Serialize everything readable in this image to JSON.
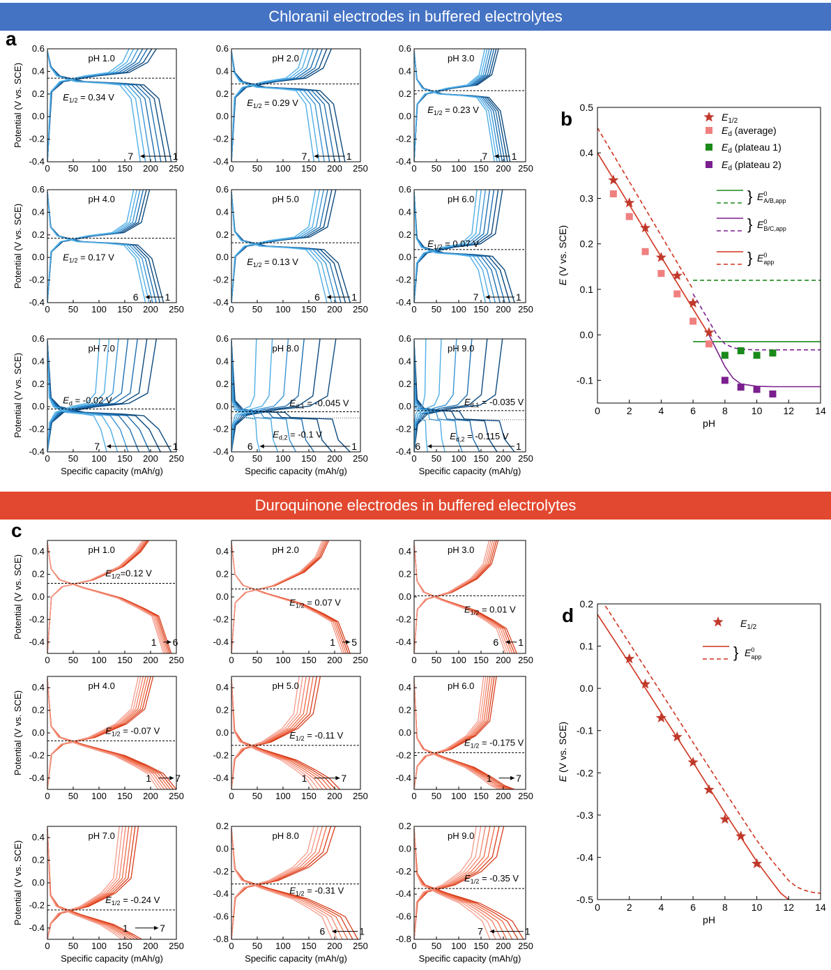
{
  "headers": {
    "chloranil": "Chloranil electrodes in buffered electrolytes",
    "duroquinone": "Duroquinone electrodes in buffered electrolytes"
  },
  "panel_labels": {
    "a": "a",
    "b": "b",
    "c": "c",
    "d": "d"
  },
  "colors": {
    "chloranil_banner": "#4573c4",
    "duroquinone_banner": "#e2482f",
    "chloranil_curves": [
      "#0d4a7f",
      "#1f6fb0",
      "#3b95d6",
      "#4faee6"
    ],
    "duroquinone_curves": [
      "#d93d1b",
      "#ee6a45",
      "#f4826a",
      "#f59a88"
    ],
    "e_half_star": "#c0392b",
    "ed_average": "#f08080",
    "ed_plateau1": "#1a8a1a",
    "ed_plateau2": "#7b1f8f"
  },
  "common": {
    "xlabel": "Specific capacity (mAh/g)",
    "ylabel": "Potential (V vs. SCE)"
  },
  "chart_data": [
    {
      "type": "line",
      "panel": "a",
      "description_free": true,
      "xlabel": "Specific capacity (mAh/g)",
      "ylabel": "Potential (V vs. SCE)",
      "xlim": [
        0,
        250
      ],
      "ylim": [
        -0.4,
        0.6
      ],
      "xticks": [
        "0",
        "50",
        "100",
        "150",
        "200",
        "250"
      ],
      "yticks": [
        "-0.4",
        "-0.2",
        "0.0",
        "0.2",
        "0.4",
        "0.6"
      ],
      "subplots": [
        {
          "title": "pH 1.0",
          "e_half": 0.34,
          "label": "E1/2 = 0.34 V",
          "n": 7,
          "cap_first": 240,
          "cap_last": 180,
          "arrow_from": "1",
          "arrow_to": "7"
        },
        {
          "title": "pH 2.0",
          "e_half": 0.29,
          "label": "E1/2 = 0.29 V",
          "n": 7,
          "cap_first": 220,
          "cap_last": 160,
          "arrow_from": "1",
          "arrow_to": "7"
        },
        {
          "title": "pH 3.0",
          "e_half": 0.23,
          "label": "E1/2 = 0.23 V",
          "n": 7,
          "cap_first": 215,
          "cap_last": 180,
          "arrow_from": "1",
          "arrow_to": "7"
        },
        {
          "title": "pH 4.0",
          "e_half": 0.17,
          "label": "E1/2 = 0.17 V",
          "n": 6,
          "cap_first": 225,
          "cap_last": 190,
          "arrow_from": "1",
          "arrow_to": "6"
        },
        {
          "title": "pH 5.0",
          "e_half": 0.13,
          "label": "E1/2 = 0.13 V",
          "n": 6,
          "cap_first": 230,
          "cap_last": 185,
          "arrow_from": "1",
          "arrow_to": "6"
        },
        {
          "title": "pH 6.0",
          "e_half": 0.07,
          "label": "E1/2 = 0.07 V",
          "n": 7,
          "cap_first": 225,
          "cap_last": 160,
          "arrow_from": "1",
          "arrow_to": "7"
        },
        {
          "title": "pH 7.0",
          "e_half": -0.02,
          "label": "Ed = -0.02 V",
          "n": 7,
          "cap_first": 240,
          "cap_last": 115,
          "arrow_from": "1",
          "arrow_to": "7"
        },
        {
          "title": "pH 8.0",
          "e_half": -0.045,
          "label": "Ed,1 = -0.045 V",
          "label2": "Ed,2 = -0.1 V",
          "e2": -0.1,
          "n": 6,
          "cap_first": 230,
          "cap_last": 55,
          "arrow_from": "1",
          "arrow_to": "6"
        },
        {
          "title": "pH 9.0",
          "e_half": -0.035,
          "label": "Ed,1 = -0.035 V",
          "label2": "Ed,2 = -0.115 V",
          "e2": -0.115,
          "n": 6,
          "cap_first": 225,
          "cap_last": 30,
          "arrow_from": "1",
          "arrow_to": "6"
        }
      ]
    },
    {
      "type": "scatter",
      "panel": "b",
      "xlabel": "pH",
      "ylabel": "E (V vs. SCE)",
      "xlim": [
        0,
        14
      ],
      "ylim": [
        -0.15,
        0.5
      ],
      "xticks": [
        "0",
        "2",
        "4",
        "6",
        "8",
        "10",
        "12",
        "14"
      ],
      "yticks": [
        "-0.1",
        "0.0",
        "0.1",
        "0.2",
        "0.3",
        "0.4",
        "0.5"
      ],
      "series": [
        {
          "name": "E1/2",
          "marker": "star",
          "x": [
            1,
            2,
            3,
            4,
            5,
            6,
            7
          ],
          "y": [
            0.34,
            0.29,
            0.235,
            0.17,
            0.13,
            0.07,
            0.005
          ]
        },
        {
          "name": "Ed (average)",
          "marker": "square",
          "x": [
            1,
            2,
            3,
            4,
            5,
            6,
            7
          ],
          "y": [
            0.31,
            0.26,
            0.183,
            0.135,
            0.09,
            0.03,
            -0.02
          ]
        },
        {
          "name": "Ed (plateau 1)",
          "marker": "square",
          "x": [
            8,
            9,
            10,
            11
          ],
          "y": [
            -0.045,
            -0.035,
            -0.045,
            -0.04
          ]
        },
        {
          "name": "Ed (plateau 2)",
          "marker": "square",
          "x": [
            8,
            9,
            10,
            11
          ],
          "y": [
            -0.1,
            -0.115,
            -0.12,
            -0.13
          ]
        }
      ],
      "lines": [
        {
          "key": "a_b_solid",
          "x": [
            6,
            14
          ],
          "y": [
            -0.015,
            -0.015
          ]
        },
        {
          "key": "a_b_dash",
          "x": [
            6,
            14
          ],
          "y": [
            0.12,
            0.12
          ]
        },
        {
          "key": "b_c_solid",
          "x": [
            7,
            7.5,
            8,
            8.5,
            9,
            10,
            11,
            14
          ],
          "y": [
            0.0,
            -0.035,
            -0.07,
            -0.095,
            -0.108,
            -0.113,
            -0.114,
            -0.114
          ]
        },
        {
          "key": "b_c_dash",
          "x": [
            6,
            6.5,
            7,
            7.5,
            8,
            8.5,
            9,
            10,
            14
          ],
          "y": [
            0.09,
            0.06,
            0.03,
            0.0,
            -0.02,
            -0.028,
            -0.032,
            -0.033,
            -0.033
          ]
        },
        {
          "key": "app_solid",
          "x": [
            0,
            7
          ],
          "y": [
            0.4,
            0.0
          ]
        },
        {
          "key": "app_dash",
          "x": [
            0,
            6
          ],
          "y": [
            0.455,
            0.1
          ]
        }
      ],
      "legend": [
        {
          "text": "E1/2",
          "sym": "star"
        },
        {
          "text": "Ed (average)",
          "sym": "sq-avg"
        },
        {
          "text": "Ed (plateau 1)",
          "sym": "sq-p1"
        },
        {
          "text": "Ed (plateau 2)",
          "sym": "sq-p2"
        },
        {
          "text": "E0A/B,app",
          "sym": "pair-green"
        },
        {
          "text": "E0B/C,app",
          "sym": "pair-purple"
        },
        {
          "text": "E0app",
          "sym": "pair-red"
        }
      ]
    },
    {
      "type": "line",
      "panel": "c",
      "xlabel": "Specific capacity (mAh/g)",
      "ylabel": "Potential (V vs. SCE)",
      "xlim": [
        0,
        250
      ],
      "subplots": [
        {
          "title": "pH 1.0",
          "e_half": 0.12,
          "label": "E1/2=0.12 V",
          "ylim": [
            -0.5,
            0.5
          ],
          "yticks": [
            "-0.4",
            "-0.2",
            "0.0",
            "0.2",
            "0.4"
          ],
          "n": 6,
          "cap_first": 240,
          "cap_last": 225,
          "arrow_from": "1",
          "arrow_to": "6"
        },
        {
          "title": "pH 2.0",
          "e_half": 0.07,
          "label": "E1/2 = 0.07 V",
          "ylim": [
            -0.5,
            0.5
          ],
          "yticks": [
            "-0.4",
            "-0.2",
            "0.0",
            "0.2",
            "0.4"
          ],
          "n": 5,
          "cap_first": 230,
          "cap_last": 215,
          "arrow_from": "1",
          "arrow_to": "5"
        },
        {
          "title": "pH 3.0",
          "e_half": 0.01,
          "label": "E1/2 = 0.01 V",
          "ylim": [
            -0.5,
            0.5
          ],
          "yticks": [
            "-0.4",
            "-0.2",
            "0.0",
            "0.2",
            "0.4"
          ],
          "n": 6,
          "cap_first": 230,
          "cap_last": 205,
          "arrow_from": "1",
          "arrow_to": "6"
        },
        {
          "title": "pH 4.0",
          "e_half": -0.07,
          "label": "E1/2 = -0.07 V",
          "ylim": [
            -0.5,
            0.5
          ],
          "yticks": [
            "-0.4",
            "-0.2",
            "0.0",
            "0.2",
            "0.4"
          ],
          "n": 7,
          "cap_first": 250,
          "cap_last": 215,
          "arrow_from": "1",
          "arrow_to": "7"
        },
        {
          "title": "pH 5.0",
          "e_half": -0.11,
          "label": "E1/2 = -0.11 V",
          "ylim": [
            -0.5,
            0.5
          ],
          "yticks": [
            "-0.4",
            "-0.2",
            "0.0",
            "0.2",
            "0.4"
          ],
          "n": 7,
          "cap_first": 210,
          "cap_last": 160,
          "arrow_from": "1",
          "arrow_to": "7"
        },
        {
          "title": "pH 6.0",
          "e_half": -0.175,
          "label": "E1/2 = -0.175 V",
          "ylim": [
            -0.5,
            0.5
          ],
          "yticks": [
            "-0.4",
            "-0.2",
            "0.0",
            "0.2",
            "0.4"
          ],
          "n": 7,
          "cap_first": 225,
          "cap_last": 190,
          "arrow_from": "1",
          "arrow_to": "7"
        },
        {
          "title": "pH 7.0",
          "e_half": -0.24,
          "label": "E1/2 = -0.24 V",
          "ylim": [
            -0.5,
            0.5
          ],
          "yticks": [
            "-0.4",
            "-0.2",
            "0.0",
            "0.2",
            "0.4"
          ],
          "n": 7,
          "cap_first": 215,
          "cap_last": 170,
          "arrow_from": "1",
          "arrow_to": "7"
        },
        {
          "title": "pH 8.0",
          "e_half": -0.31,
          "label": "E1/2 = -0.31 V",
          "ylim": [
            -0.8,
            0.2
          ],
          "yticks": [
            "-0.8",
            "-0.6",
            "-0.4",
            "-0.2",
            "0.0",
            "0.2"
          ],
          "n": 6,
          "cap_first": 245,
          "cap_last": 195,
          "arrow_from": "1",
          "arrow_to": "6"
        },
        {
          "title": "pH 9.0",
          "e_half": -0.35,
          "label": "E1/2 = -0.35 V",
          "ylim": [
            -0.8,
            0.2
          ],
          "yticks": [
            "-0.8",
            "-0.6",
            "-0.4",
            "-0.2",
            "0.0",
            "0.2"
          ],
          "n": 7,
          "cap_first": 245,
          "cap_last": 170,
          "arrow_from": "1",
          "arrow_to": "7"
        }
      ],
      "xticks": [
        "0",
        "50",
        "100",
        "150",
        "200",
        "250"
      ]
    },
    {
      "type": "scatter",
      "panel": "d",
      "xlabel": "pH",
      "ylabel": "E (V vs. SCE)",
      "xlim": [
        0,
        14
      ],
      "ylim": [
        -0.5,
        0.2
      ],
      "xticks": [
        "0",
        "2",
        "4",
        "6",
        "8",
        "10",
        "12",
        "14"
      ],
      "yticks": [
        "-0.5",
        "-0.4",
        "-0.3",
        "-0.2",
        "-0.1",
        "0.0",
        "0.1",
        "0.2"
      ],
      "series": [
        {
          "name": "E1/2",
          "marker": "star",
          "x": [
            2,
            3,
            4,
            5,
            6,
            7,
            8,
            9,
            10
          ],
          "y": [
            0.07,
            0.01,
            -0.07,
            -0.115,
            -0.175,
            -0.24,
            -0.31,
            -0.35,
            -0.415
          ]
        }
      ],
      "lines": [
        {
          "key": "app_solid",
          "x": [
            0,
            2,
            4,
            6,
            8,
            10,
            11,
            11.5,
            12
          ],
          "y": [
            0.175,
            0.06,
            -0.058,
            -0.175,
            -0.295,
            -0.41,
            -0.46,
            -0.485,
            -0.5
          ]
        },
        {
          "key": "app_dash",
          "x": [
            0.5,
            2,
            4,
            6,
            8,
            10,
            11,
            12,
            12.5,
            13,
            13.5,
            14
          ],
          "y": [
            0.195,
            0.107,
            -0.01,
            -0.128,
            -0.245,
            -0.36,
            -0.41,
            -0.455,
            -0.47,
            -0.478,
            -0.483,
            -0.485
          ]
        }
      ],
      "legend": [
        {
          "text": "E1/2",
          "sym": "star"
        },
        {
          "text": "E0app",
          "sym": "pair-red"
        }
      ]
    }
  ]
}
